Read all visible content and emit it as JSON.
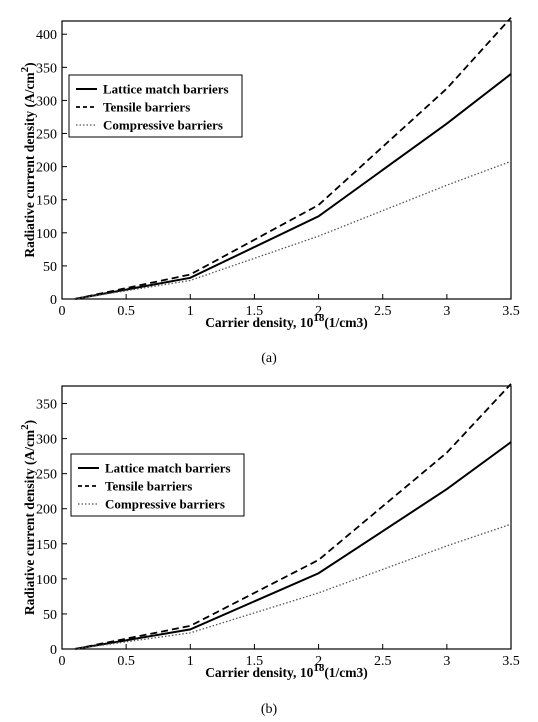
{
  "chart_data": [
    {
      "type": "line",
      "caption": "(a)",
      "xlabel": "Carrier density, ",
      "xlabel_sup": "18",
      "xlabel_pre": "10",
      "xlabel_unit": "(1/cm3)",
      "ylabel": "Radiative current density (A/cm",
      "ylabel_sup": "2",
      "ylabel_end": ")",
      "xlim": [
        0,
        3.5
      ],
      "ylim": [
        0,
        420
      ],
      "xticks": [
        0,
        0.5,
        1,
        1.5,
        2,
        2.5,
        3,
        3.5
      ],
      "xtick_labels": [
        "0",
        "0.5",
        "1",
        "1.5",
        "2",
        "2.5",
        "3",
        "3.5"
      ],
      "yticks": [
        0,
        50,
        100,
        150,
        200,
        250,
        300,
        350,
        400
      ],
      "ytick_labels": [
        "0",
        "50",
        "100",
        "150",
        "200",
        "250",
        "300",
        "350",
        "400"
      ],
      "legend_position": "upper-left",
      "grid": false,
      "series": [
        {
          "name": "Lattice match barriers",
          "style": "solid",
          "x": [
            0.1,
            1,
            2,
            3,
            3.5
          ],
          "y": [
            0,
            32,
            125,
            265,
            340
          ]
        },
        {
          "name": "Tensile barriers",
          "style": "dashed",
          "x": [
            0.1,
            1,
            2,
            3,
            3.5
          ],
          "y": [
            0,
            37,
            142,
            318,
            425
          ]
        },
        {
          "name": "Compressive barriers",
          "style": "dotted",
          "x": [
            0.1,
            1,
            2,
            3,
            3.5
          ],
          "y": [
            0,
            28,
            95,
            172,
            208
          ]
        }
      ]
    },
    {
      "type": "line",
      "caption": "(b)",
      "xlabel": "Carrier density, ",
      "xlabel_sup": "18",
      "xlabel_pre": "10",
      "xlabel_unit": "(1/cm3)",
      "ylabel": "Radiative current density (A/cm",
      "ylabel_sup": "2",
      "ylabel_end": ")",
      "xlim": [
        0,
        3.5
      ],
      "ylim": [
        0,
        375
      ],
      "xticks": [
        0,
        0.5,
        1,
        1.5,
        2,
        2.5,
        3,
        3.5
      ],
      "xtick_labels": [
        "0",
        "0.5",
        "1",
        "1.5",
        "2",
        "2.5",
        "3",
        "3.5"
      ],
      "yticks": [
        0,
        50,
        100,
        150,
        200,
        250,
        300,
        350
      ],
      "ytick_labels": [
        "0",
        "50",
        "100",
        "150",
        "200",
        "250",
        "300",
        "350"
      ],
      "legend_position": "upper-left",
      "grid": false,
      "series": [
        {
          "name": "Lattice match barriers",
          "style": "solid",
          "x": [
            0.1,
            1,
            2,
            3,
            3.5
          ],
          "y": [
            0,
            28,
            108,
            228,
            295
          ]
        },
        {
          "name": "Tensile barriers",
          "style": "dashed",
          "x": [
            0.1,
            1,
            2,
            3,
            3.5
          ],
          "y": [
            0,
            33,
            127,
            280,
            378
          ]
        },
        {
          "name": "Compressive barriers",
          "style": "dotted",
          "x": [
            0.1,
            1,
            2,
            3,
            3.5
          ],
          "y": [
            0,
            23,
            80,
            147,
            178
          ]
        }
      ]
    }
  ]
}
